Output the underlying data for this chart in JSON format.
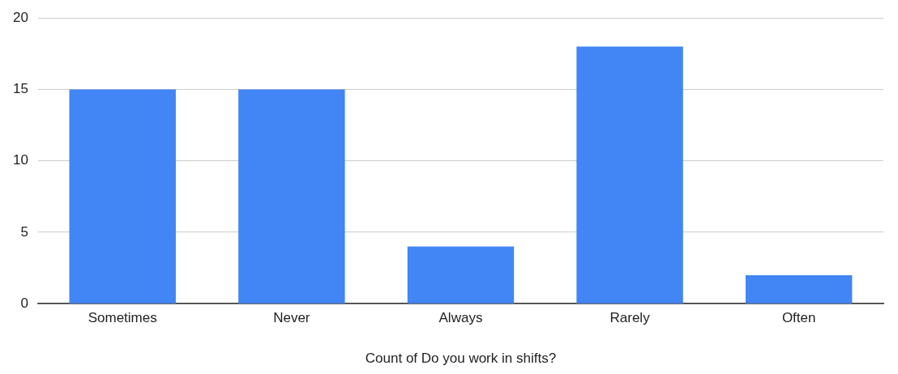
{
  "chart_data": {
    "type": "bar",
    "xlabel": "Count of Do you work in shifts?",
    "categories": [
      "Sometimes",
      "Never",
      "Always",
      "Rarely",
      "Often"
    ],
    "values": [
      15,
      15,
      4,
      18,
      2
    ],
    "color": "#4285f4",
    "ylim": [
      0,
      20
    ],
    "yticks": [
      0,
      5,
      10,
      15,
      20
    ],
    "grid": "y",
    "legend": false
  }
}
